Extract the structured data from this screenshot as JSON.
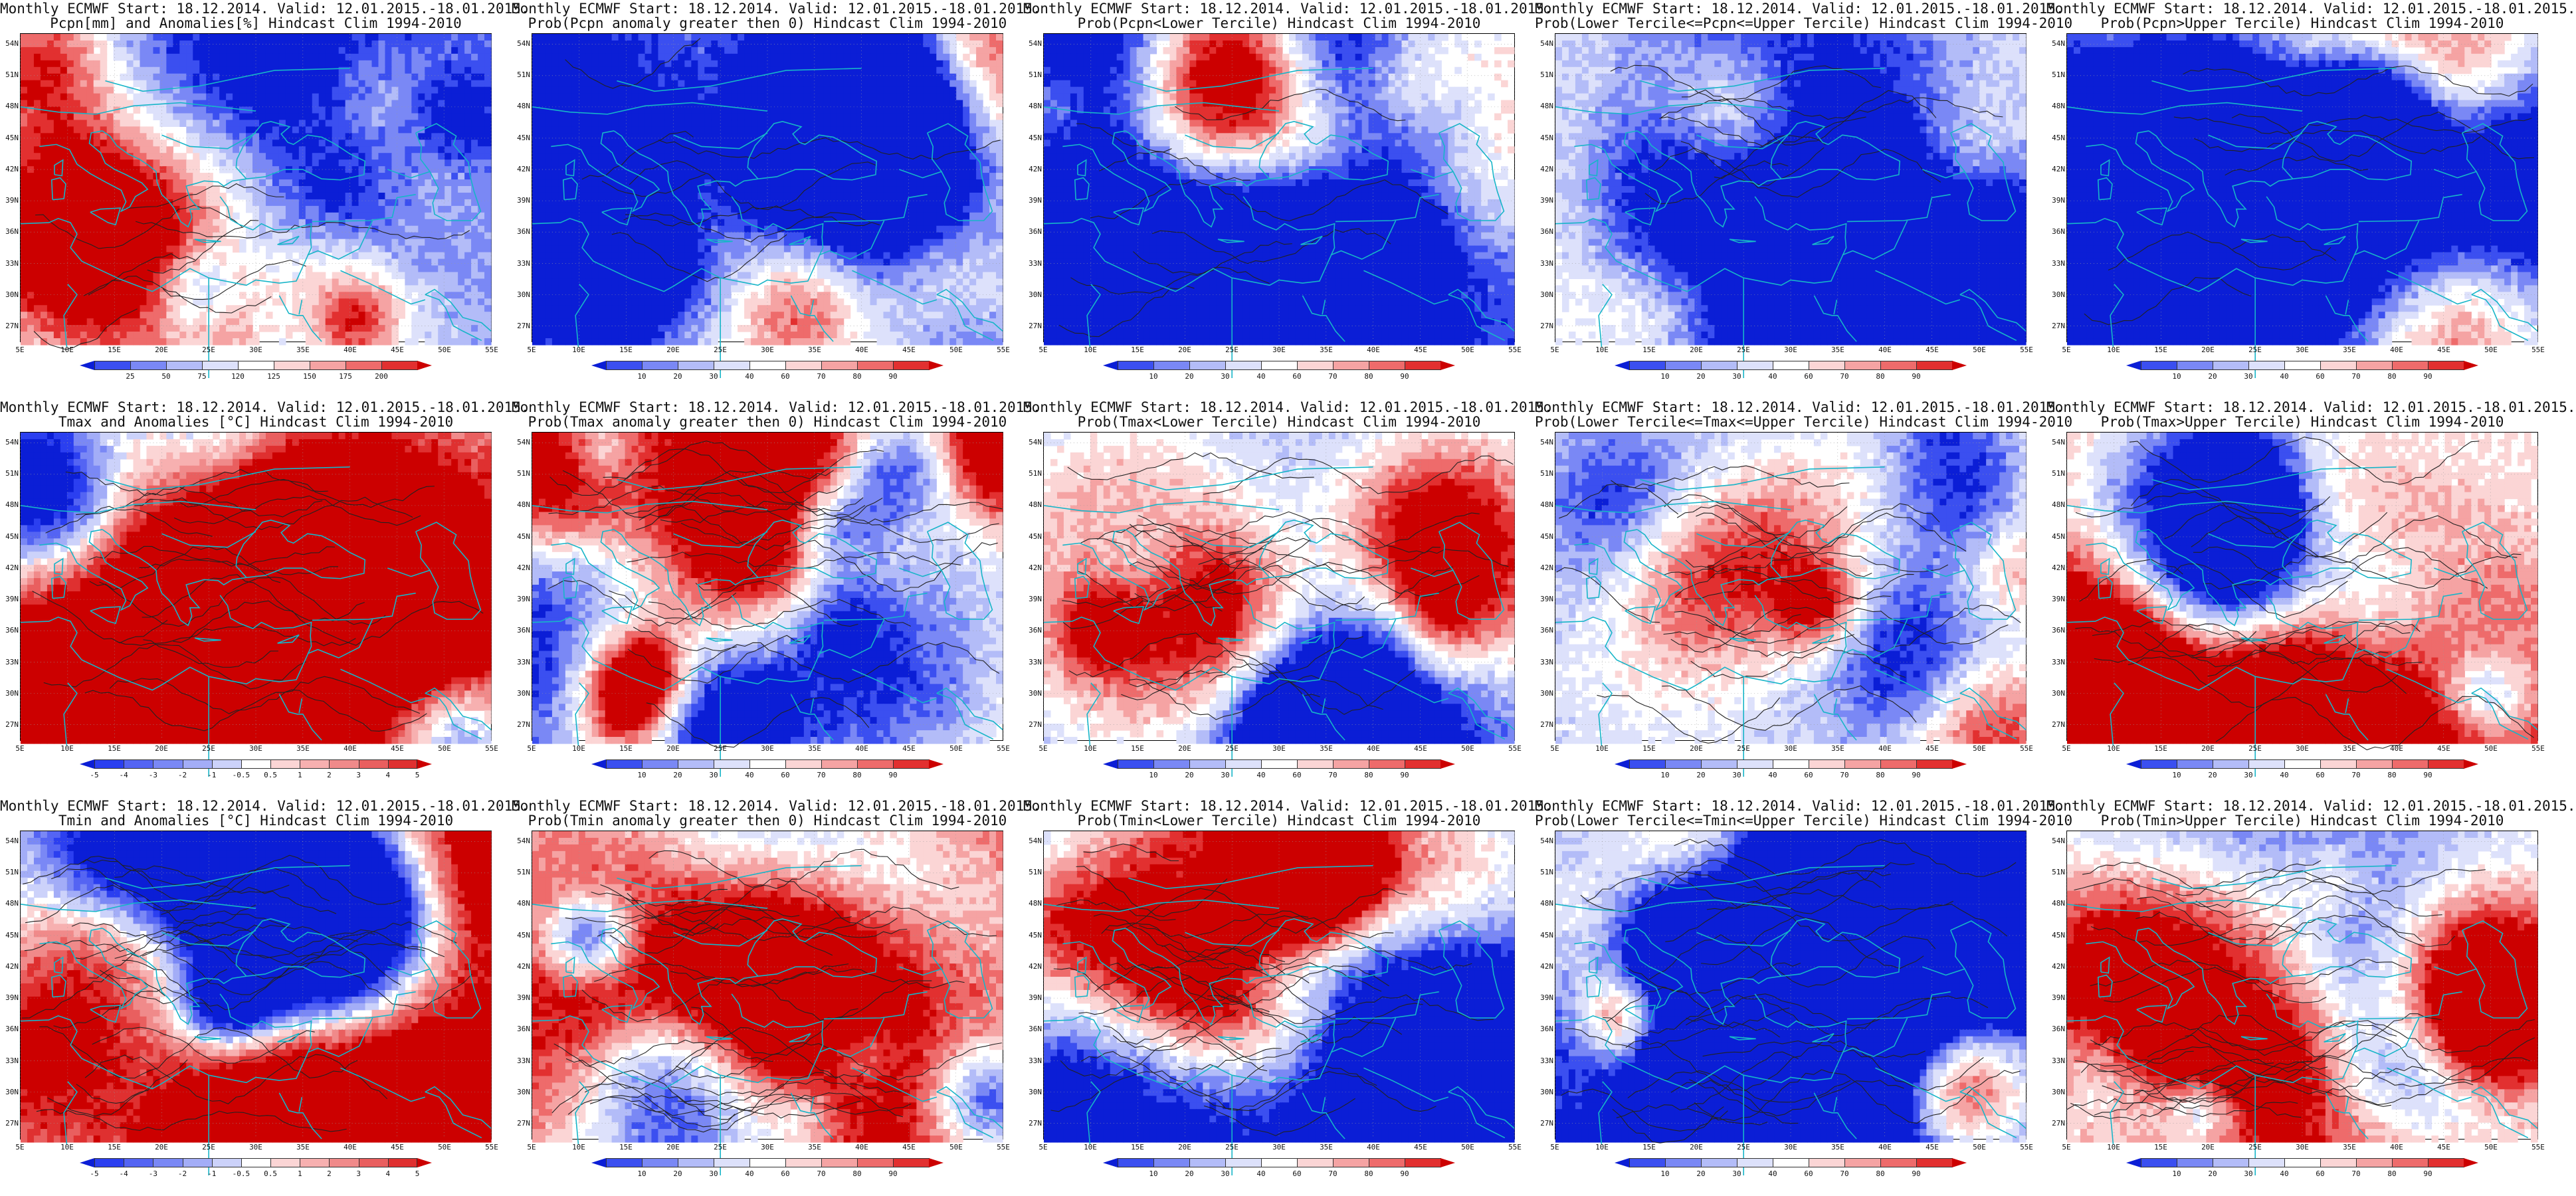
{
  "map_extent": {
    "lat_labels": [
      "54N",
      "51N",
      "48N",
      "45N",
      "42N",
      "39N",
      "36N",
      "33N",
      "30N",
      "27N"
    ],
    "lon_labels": [
      "5E",
      "10E",
      "15E",
      "20E",
      "25E",
      "30E",
      "35E",
      "40E",
      "45E",
      "50E",
      "55E"
    ]
  },
  "legends": {
    "pcpn_anom": {
      "ticks": [
        "25",
        "50",
        "75",
        "120",
        "125",
        "150",
        "175",
        "200"
      ],
      "colors": [
        "#0b1ed6",
        "#3b4ff0",
        "#7a88f5",
        "#b3bcf8",
        "#dde1fb",
        "#ffffff",
        "#fbd5d5",
        "#f5a3a3",
        "#ee6b6b",
        "#e23030",
        "#cc0000"
      ]
    },
    "prob": {
      "ticks": [
        "10",
        "20",
        "30",
        "40",
        "60",
        "70",
        "80",
        "90"
      ],
      "colors": [
        "#0b1ed6",
        "#3b4ff0",
        "#7a88f5",
        "#b3bcf8",
        "#dde1fb",
        "#ffffff",
        "#fbd5d5",
        "#f5a3a3",
        "#ee6b6b",
        "#e23030",
        "#cc0000"
      ]
    },
    "temp_anom": {
      "ticks": [
        "-5",
        "-4",
        "-3",
        "-2",
        "-1",
        "-0.5",
        "0.5",
        "1",
        "2",
        "3",
        "4",
        "5"
      ],
      "colors": [
        "#0b1ed6",
        "#2b3ff0",
        "#5464f3",
        "#7a88f5",
        "#a3adf7",
        "#ccd2fa",
        "#ffffff",
        "#fbd5d5",
        "#f7b0b0",
        "#f08a8a",
        "#e95f5f",
        "#df3030",
        "#cc0000"
      ]
    }
  },
  "panels": [
    {
      "line1": "Monthly ECMWF Start: 18.12.2014. Valid: 12.01.2015.-18.01.2015.",
      "line2": "Pcpn[mm] and Anomalies[%] Hindcast Clim 1994-2010",
      "legend": "pcpn_anom",
      "bias": 0.2,
      "seed": 11,
      "contours": 8,
      "colorbar": true
    },
    {
      "line1": "Monthly ECMWF Start: 18.12.2014. Valid: 12.01.2015.-18.01.2015.",
      "line2": "Prob(Pcpn anomaly greater then 0) Hindcast Clim 1994-2010",
      "legend": "prob",
      "bias": 0.3,
      "seed": 12,
      "contours": 8,
      "colorbar": true
    },
    {
      "line1": "Monthly ECMWF Start: 18.12.2014. Valid: 12.01.2015.-18.01.2015.",
      "line2": "Prob(Pcpn<Lower Tercile) Hindcast Clim 1994-2010",
      "legend": "prob",
      "bias": 0.15,
      "seed": 13,
      "contours": 8,
      "colorbar": true
    },
    {
      "line1": "Monthly ECMWF Start: 18.12.2014. Valid: 12.01.2015.-18.01.2015.",
      "line2": "Prob(Lower Tercile<=Pcpn<=Upper Tercile) Hindcast Clim 1994-2010",
      "legend": "prob",
      "bias": 0.35,
      "seed": 14,
      "contours": 8,
      "colorbar": true
    },
    {
      "line1": "Monthly ECMWF Start: 18.12.2014. Valid: 12.01.2015.-18.01.2015.",
      "line2": "Prob(Pcpn>Upper Tercile) Hindcast Clim 1994-2010",
      "legend": "prob",
      "bias": 0.3,
      "seed": 15,
      "contours": 8,
      "colorbar": true
    },
    {
      "line1": "Monthly ECMWF Start: 18.12.2014. Valid: 12.01.2015.-18.01.2015.",
      "line2": "Tmax and Anomalies [°C] Hindcast Clim 1994-2010",
      "legend": "temp_anom",
      "bias": 0.62,
      "seed": 21,
      "contours": 18,
      "colorbar": true
    },
    {
      "line1": "Monthly ECMWF Start: 18.12.2014. Valid: 12.01.2015.-18.01.2015.",
      "line2": "Prob(Tmax anomaly greater then 0) Hindcast Clim 1994-2010",
      "legend": "prob",
      "bias": 0.68,
      "seed": 22,
      "contours": 18,
      "colorbar": true
    },
    {
      "line1": "Monthly ECMWF Start: 18.12.2014. Valid: 12.01.2015.-18.01.2015.",
      "line2": "Prob(Tmax<Lower Tercile) Hindcast Clim 1994-2010",
      "legend": "prob",
      "bias": 0.2,
      "seed": 23,
      "contours": 18,
      "colorbar": true
    },
    {
      "line1": "Monthly ECMWF Start: 18.12.2014. Valid: 12.01.2015.-18.01.2015.",
      "line2": "Prob(Lower Tercile<=Tmax<=Upper Tercile) Hindcast Clim 1994-2010",
      "legend": "prob",
      "bias": 0.3,
      "seed": 24,
      "contours": 18,
      "colorbar": true
    },
    {
      "line1": "Monthly ECMWF Start: 18.12.2014. Valid: 12.01.2015.-18.01.2015.",
      "line2": "Prob(Tmax>Upper Tercile) Hindcast Clim 1994-2010",
      "legend": "prob",
      "bias": 0.48,
      "seed": 25,
      "contours": 18,
      "colorbar": true
    },
    {
      "line1": "Monthly ECMWF Start: 18.12.2014. Valid: 12.01.2015.-18.01.2015.",
      "line2": "Tmin and Anomalies [°C] Hindcast Clim 1994-2010",
      "legend": "temp_anom",
      "bias": 0.6,
      "seed": 31,
      "contours": 24,
      "colorbar": true
    },
    {
      "line1": "Monthly ECMWF Start: 18.12.2014. Valid: 12.01.2015.-18.01.2015.",
      "line2": "Prob(Tmin anomaly greater then 0) Hindcast Clim 1994-2010",
      "legend": "prob",
      "bias": 0.66,
      "seed": 32,
      "contours": 24,
      "colorbar": true
    },
    {
      "line1": "Monthly ECMWF Start: 18.12.2014. Valid: 12.01.2015.-18.01.2015.",
      "line2": "Prob(Tmin<Lower Tercile) Hindcast Clim 1994-2010",
      "legend": "prob",
      "bias": 0.2,
      "seed": 33,
      "contours": 24,
      "colorbar": true
    },
    {
      "line1": "Monthly ECMWF Start: 18.12.2014. Valid: 12.01.2015.-18.01.2015.",
      "line2": "Prob(Lower Tercile<=Tmin<=Upper Tercile) Hindcast Clim 1994-2010",
      "legend": "prob",
      "bias": 0.28,
      "seed": 34,
      "contours": 24,
      "colorbar": true
    },
    {
      "line1": "Monthly ECMWF Start: 18.12.2014. Valid: 12.01.2015.-18.01.2015.",
      "line2": "Prob(Tmin>Upper Tercile) Hindcast Clim 1994-2010",
      "legend": "prob",
      "bias": 0.42,
      "seed": 35,
      "contours": 24,
      "colorbar": true
    }
  ]
}
